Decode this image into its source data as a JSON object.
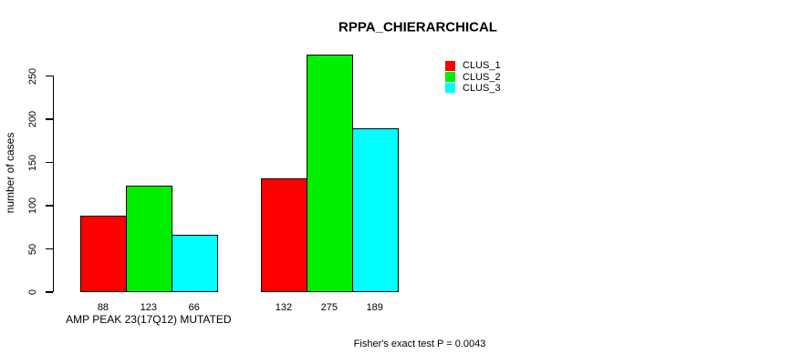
{
  "chart_data": {
    "type": "bar",
    "title": "RPPA_CHIERARCHICAL",
    "ylabel": "number of cases",
    "xlabel": "",
    "categories": [
      "AMP PEAK 23(17Q12) MUTATED",
      ""
    ],
    "series": [
      {
        "name": "CLUS_1",
        "color": "#ff0000",
        "values": [
          88,
          132
        ]
      },
      {
        "name": "CLUS_2",
        "color": "#00ee00",
        "values": [
          123,
          275
        ]
      },
      {
        "name": "CLUS_3",
        "color": "#00ffff",
        "values": [
          66,
          189
        ]
      }
    ],
    "bar_value_labels": [
      [
        88,
        123,
        66
      ],
      [
        132,
        275,
        189
      ]
    ],
    "yticks": [
      0,
      50,
      100,
      150,
      200,
      250
    ],
    "ylim": [
      0,
      275
    ],
    "grid": false,
    "legend_position": "top-right",
    "legend_entries": [
      "CLUS_1",
      "CLUS_2",
      "CLUS_3"
    ],
    "annotation": "Fisher's exact test P = 0.0043"
  }
}
